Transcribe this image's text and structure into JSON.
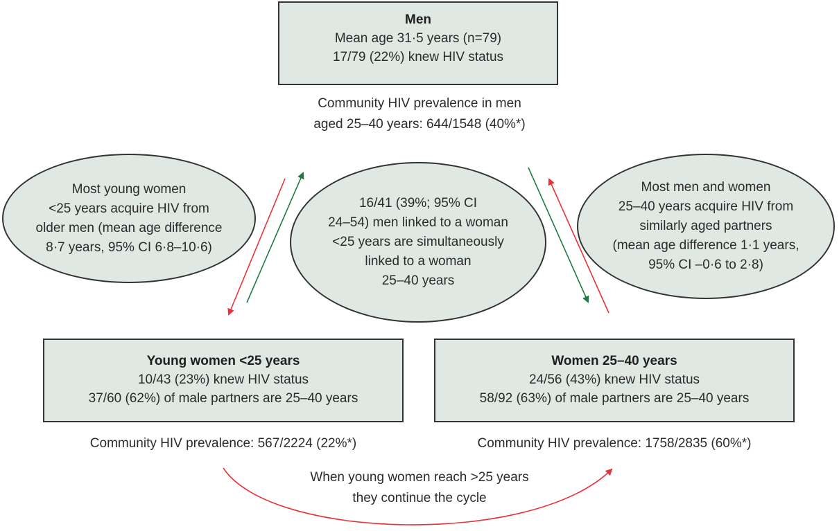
{
  "men_box": {
    "title": "Men",
    "line1": "Mean age 31·5 years (n=79)",
    "line2": "17/79 (22%) knew HIV status"
  },
  "men_prevalence": {
    "line1": "Community HIV prevalence in men",
    "line2": "aged 25–40 years: 644/1548 (40%*)"
  },
  "left_ellipse": {
    "lines": [
      "Most young women",
      "<25 years acquire HIV from",
      "older men (mean age difference",
      "8·7 years, 95% CI 6·8–10·6)"
    ]
  },
  "center_ellipse": {
    "lines": [
      "16/41 (39%; 95% CI",
      "24–54) men linked to a woman",
      "<25 years are simultaneously",
      "linked to a woman",
      "25–40 years"
    ]
  },
  "right_ellipse": {
    "lines": [
      "Most men and women",
      "25–40 years acquire HIV from",
      "similarly aged partners",
      "(mean age difference 1·1 years,",
      "95% CI –0·6 to 2·8)"
    ]
  },
  "young_women_box": {
    "title": "Young women <25 years",
    "line1": "10/43 (23%) knew HIV status",
    "line2": "37/60 (62%) of male partners are 25–40 years"
  },
  "young_women_prevalence": "Community HIV prevalence: 567/2224 (22%*)",
  "women_box": {
    "title": "Women 25–40 years",
    "line1": "24/56 (43%) knew HIV status",
    "line2": "58/92 (63%) of male partners are 25–40 years"
  },
  "women_prevalence": "Community HIV prevalence: 1758/2835 (60%*)",
  "cycle_caption": {
    "line1": "When young women reach >25 years",
    "line2": "they continue the cycle"
  },
  "colors": {
    "fill": "#dfe8e2",
    "border": "#333333",
    "red_arrow": "#e8323a",
    "green_arrow": "#1f7a45"
  }
}
